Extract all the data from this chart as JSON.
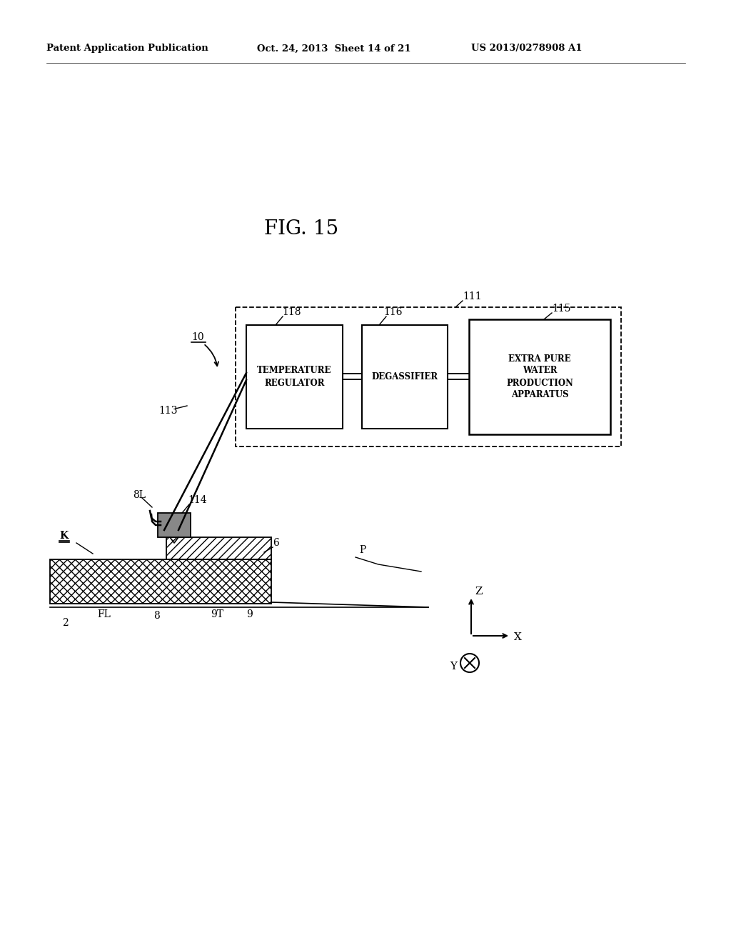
{
  "bg_color": "#ffffff",
  "header_left": "Patent Application Publication",
  "header_mid": "Oct. 24, 2013  Sheet 14 of 21",
  "header_right": "US 2013/0278908 A1",
  "fig_label": "FIG. 15",
  "label_111": "111",
  "label_118": "118",
  "label_116": "116",
  "label_115": "115",
  "text_118": "TEMPERATURE\nREGULATOR",
  "text_116": "DEGASSIFIER",
  "text_115": "EXTRA PURE\nWATER\nPRODUCTION\nAPPARATUS",
  "label_10": "10",
  "label_113": "113",
  "label_114": "114",
  "label_8L": "8L",
  "label_K": "K",
  "label_6": "6",
  "label_FL": "FL",
  "label_8": "8",
  "label_9T": "9T",
  "label_9": "9",
  "label_2": "2",
  "label_P": "P",
  "label_Z": "Z",
  "label_X": "X",
  "label_Y": "Y"
}
